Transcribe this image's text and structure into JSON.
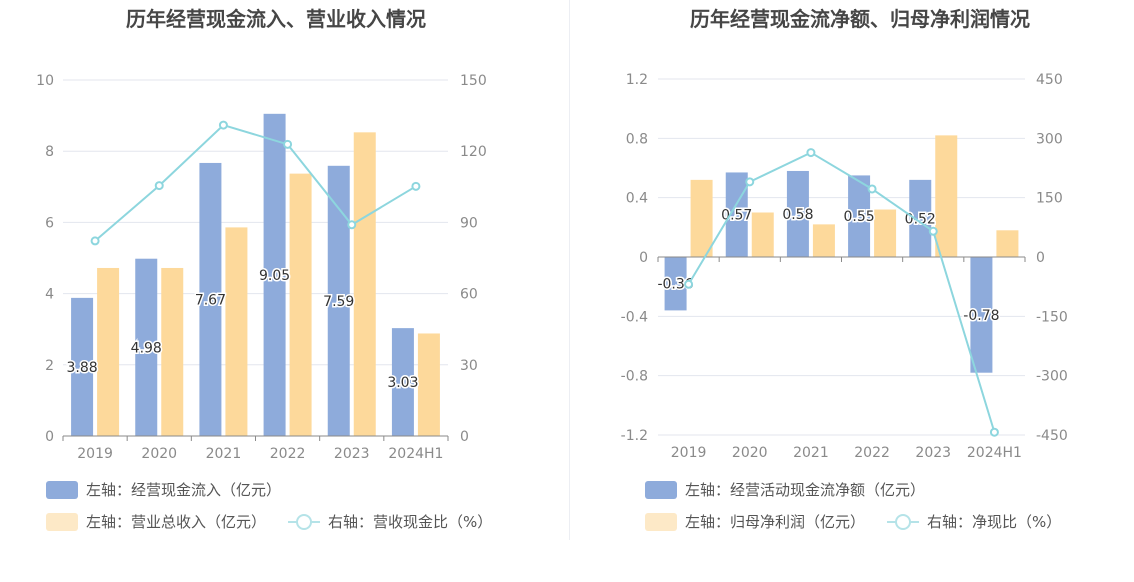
{
  "chart_data": [
    {
      "type": "bar",
      "title": "历年经营现金流入、营业收入情况",
      "categories": [
        "2019",
        "2020",
        "2021",
        "2022",
        "2023",
        "2024H1"
      ],
      "y_left": {
        "min": 0,
        "max": 10,
        "ticks": [
          "0",
          "2",
          "4",
          "6",
          "8",
          "10"
        ]
      },
      "y_right": {
        "min": 0,
        "max": 150,
        "ticks": [
          "0",
          "30",
          "60",
          "90",
          "120",
          "150"
        ]
      },
      "series": [
        {
          "name": "左轴：经营现金流入（亿元）",
          "axis": "left",
          "kind": "bar",
          "color": "#8eabdb",
          "values": [
            3.88,
            4.98,
            7.67,
            9.05,
            7.59,
            3.03
          ],
          "labels": [
            "3.88",
            "4.98",
            "7.67",
            "9.05",
            "7.59",
            "3.03"
          ]
        },
        {
          "name": "左轴：营业总收入（亿元）",
          "axis": "left",
          "kind": "bar",
          "color": "#fdd99b",
          "values": [
            4.72,
            4.72,
            5.86,
            7.37,
            8.53,
            2.88
          ]
        },
        {
          "name": "右轴：营收现金比（%）",
          "axis": "right",
          "kind": "line",
          "color": "#8dd6de",
          "values": [
            82.2,
            105.5,
            131.0,
            122.9,
            89.0,
            105.2
          ]
        }
      ],
      "legend_rows": [
        [
          0
        ],
        [
          1,
          2
        ]
      ]
    },
    {
      "type": "bar",
      "title": "历年经营现金流净额、归母净利润情况",
      "categories": [
        "2019",
        "2020",
        "2021",
        "2022",
        "2023",
        "2024H1"
      ],
      "y_left": {
        "min": -1.2,
        "max": 1.2,
        "ticks": [
          "-1.2",
          "-0.8",
          "-0.4",
          "0",
          "0.4",
          "0.8",
          "1.2"
        ]
      },
      "y_right": {
        "min": -450,
        "max": 450,
        "ticks": [
          "-450",
          "-300",
          "-150",
          "0",
          "150",
          "300",
          "450"
        ]
      },
      "series": [
        {
          "name": "左轴：经营活动现金流净额（亿元）",
          "axis": "left",
          "kind": "bar",
          "color": "#8eabdb",
          "values": [
            -0.36,
            0.57,
            0.58,
            0.55,
            0.52,
            -0.78
          ],
          "labels": [
            "-0.36",
            "0.57",
            "0.58",
            "0.55",
            "0.52",
            "-0.78"
          ]
        },
        {
          "name": "左轴：归母净利润（亿元）",
          "axis": "left",
          "kind": "bar",
          "color": "#fdd99b",
          "values": [
            0.52,
            0.3,
            0.22,
            0.32,
            0.82,
            0.18
          ]
        },
        {
          "name": "右轴：净现比（%）",
          "axis": "right",
          "kind": "line",
          "color": "#8dd6de",
          "values": [
            -69,
            190,
            264,
            172,
            65,
            -443
          ]
        }
      ],
      "legend_rows": [
        [
          0
        ],
        [
          1,
          2
        ]
      ]
    }
  ]
}
